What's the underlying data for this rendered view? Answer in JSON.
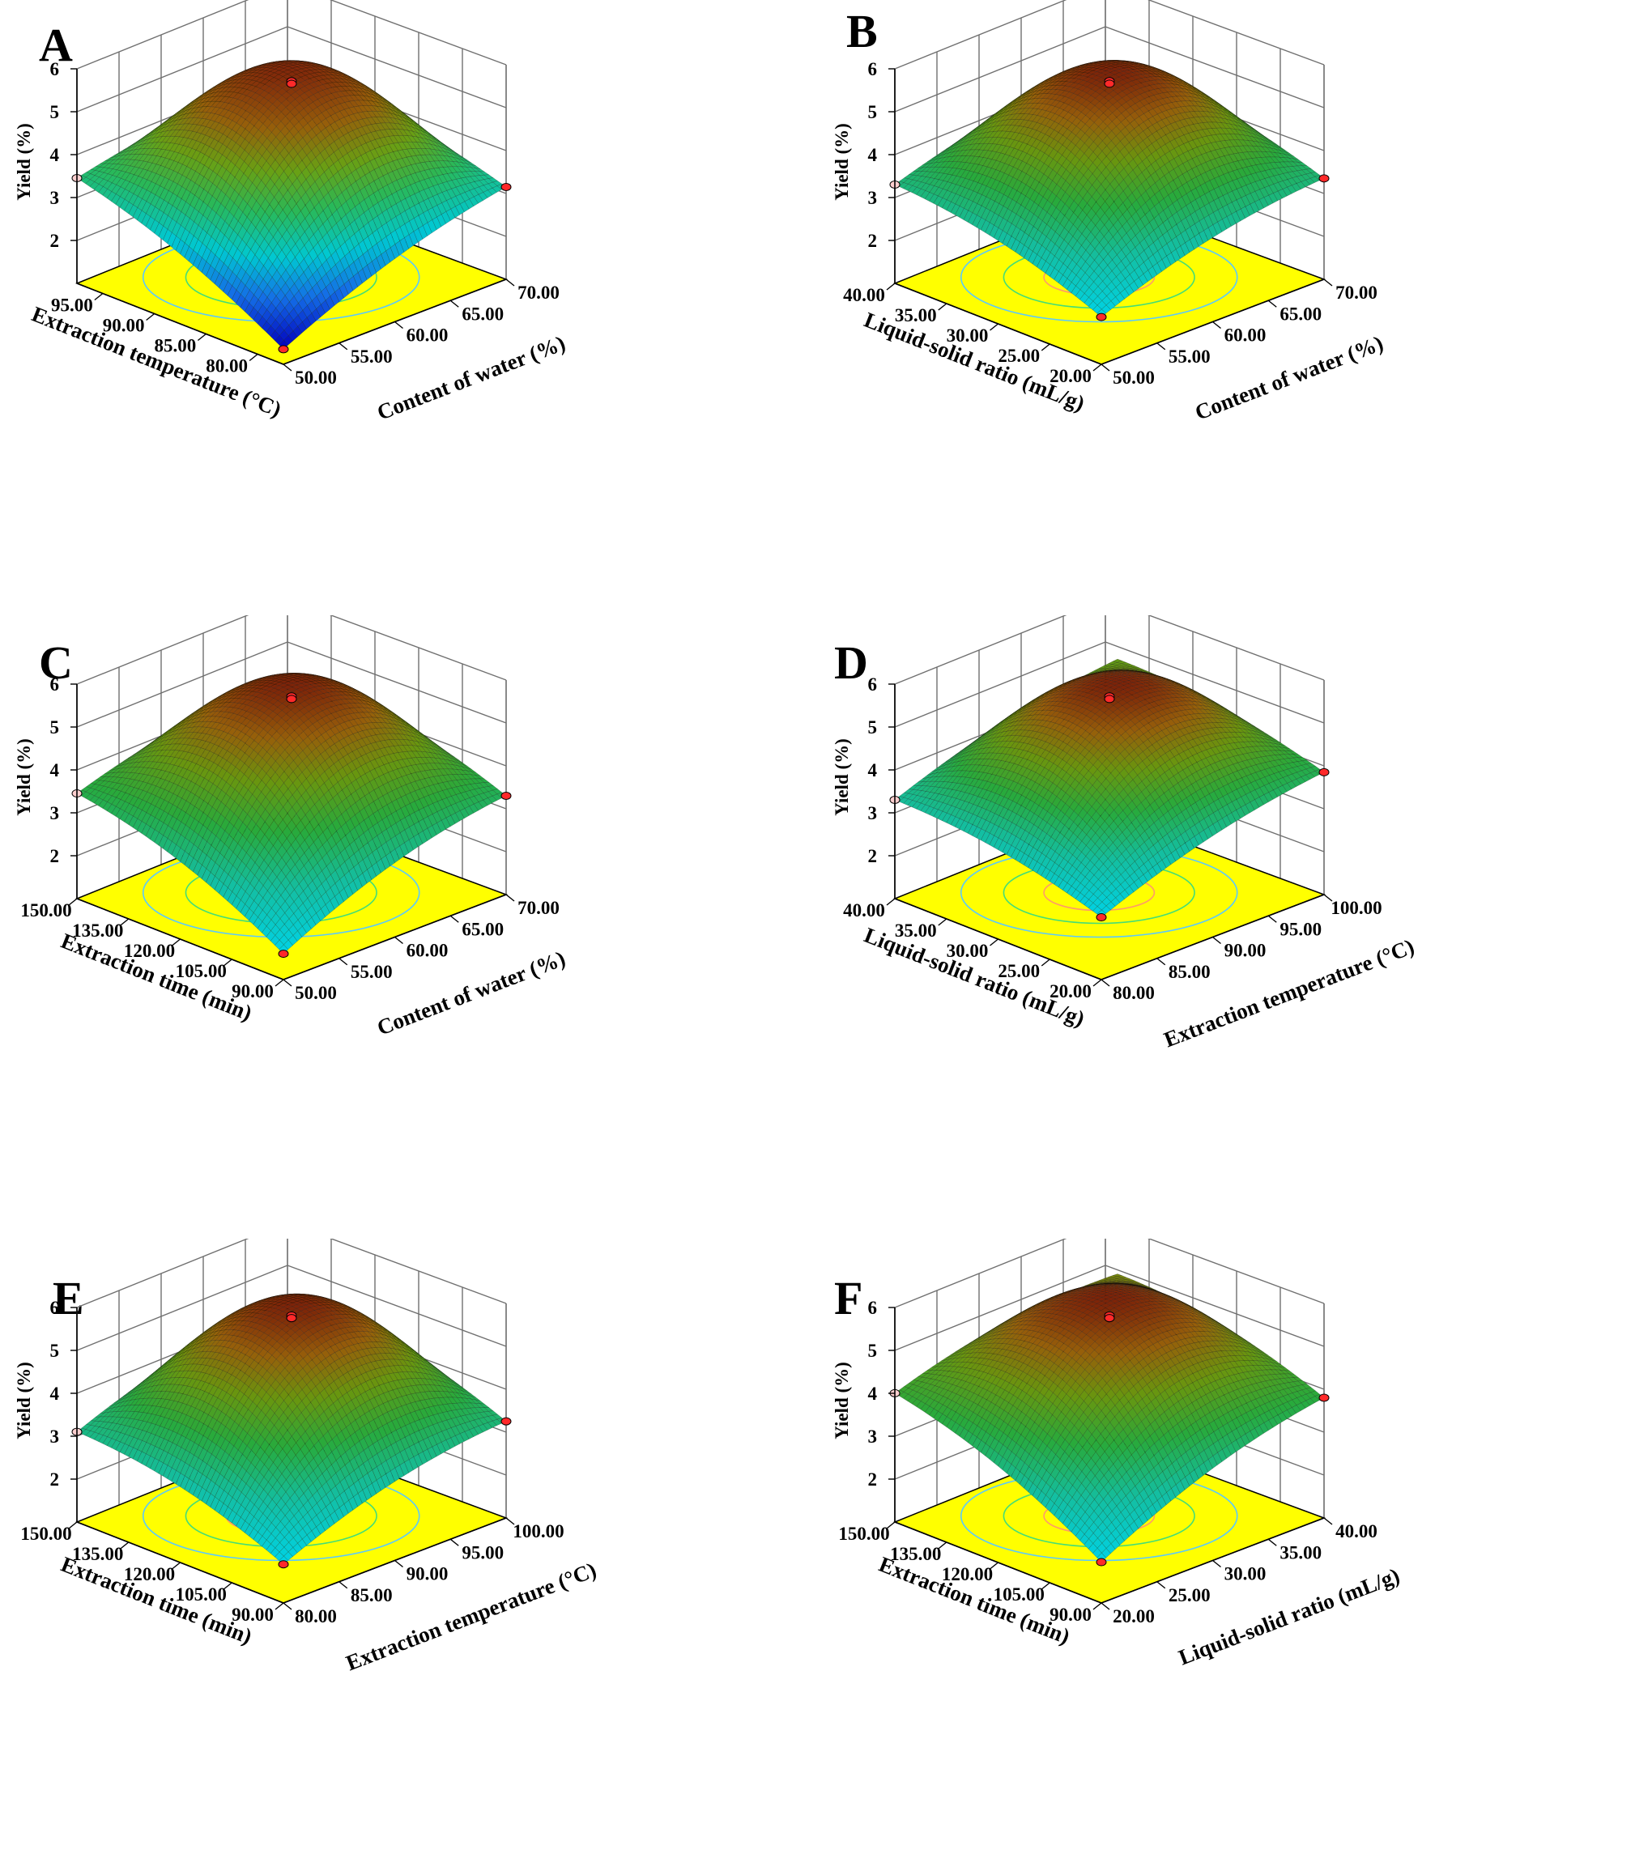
{
  "figure": {
    "title": ""
  },
  "chart_data": [
    {
      "panel": "A",
      "type": "surface",
      "title": "",
      "zlabel": "Yield (%)",
      "xlabel": "Extraction temperature (°C)",
      "ylabel": "Content of water (%)",
      "z_ticks": [
        "2",
        "3",
        "4",
        "5",
        "6"
      ],
      "x_ticks": [
        "80.00",
        "85.00",
        "90.00",
        "95.00"
      ],
      "y_ticks": [
        "50.00",
        "55.00",
        "60.00",
        "65.00",
        "70.00"
      ],
      "xlim": [
        77.5,
        97.5
      ],
      "ylim": [
        50,
        70
      ],
      "zlim": [
        1,
        6
      ],
      "corner_values": {
        "x_min_y_min": 1.35,
        "x_max_y_min": 3.45,
        "x_min_y_max": 3.15,
        "x_max_y_max": 3.9
      },
      "peak": {
        "x": 88.5,
        "y": 60,
        "z": 5.5
      },
      "z_center_mid": 3.8,
      "style": "blue"
    },
    {
      "panel": "B",
      "type": "surface",
      "title": "",
      "zlabel": "Yield (%)",
      "xlabel": "Liquid-solid ratio (mL/g)",
      "ylabel": "Content of water (%)",
      "z_ticks": [
        "2",
        "3",
        "4",
        "5",
        "6"
      ],
      "x_ticks": [
        "20.00",
        "25.00",
        "30.00",
        "35.00",
        "40.00"
      ],
      "y_ticks": [
        "50.00",
        "55.00",
        "60.00",
        "65.00",
        "70.00"
      ],
      "xlim": [
        20,
        40
      ],
      "ylim": [
        50,
        70
      ],
      "zlim": [
        1,
        6
      ],
      "corner_values": {
        "x_min_y_min": 2.1,
        "x_max_y_min": 3.3,
        "x_min_y_max": 3.35,
        "x_max_y_max": 4.2
      },
      "peak": {
        "x": 30,
        "y": 60,
        "z": 5.5
      },
      "z_center_mid": 4.4,
      "style": "cyan"
    },
    {
      "panel": "C",
      "type": "surface",
      "title": "",
      "zlabel": "Yield (%)",
      "xlabel": "Extraction time (min)",
      "ylabel": "Content of water (%)",
      "z_ticks": [
        "2",
        "3",
        "4",
        "5",
        "6"
      ],
      "x_ticks": [
        "90.00",
        "105.00",
        "120.00",
        "135.00",
        "150.00"
      ],
      "y_ticks": [
        "50.00",
        "55.00",
        "60.00",
        "65.00",
        "70.00"
      ],
      "xlim": [
        90,
        150
      ],
      "ylim": [
        50,
        70
      ],
      "zlim": [
        1,
        6
      ],
      "corner_values": {
        "x_min_y_min": 1.6,
        "x_max_y_min": 3.45,
        "x_min_y_max": 3.3,
        "x_max_y_max": 4.2
      },
      "peak": {
        "x": 120,
        "y": 60,
        "z": 5.5
      },
      "z_center_mid": 4.4,
      "style": "cyan"
    },
    {
      "panel": "D",
      "type": "surface",
      "title": "",
      "zlabel": "Yield (%)",
      "xlabel": "Liquid-solid ratio (mL/g)",
      "ylabel": "Extraction temperature (°C)",
      "z_ticks": [
        "2",
        "3",
        "4",
        "5",
        "6"
      ],
      "x_ticks": [
        "20.00",
        "25.00",
        "30.00",
        "35.00",
        "40.00"
      ],
      "y_ticks": [
        "80.00",
        "85.00",
        "90.00",
        "95.00",
        "100.00"
      ],
      "xlim": [
        20,
        40
      ],
      "ylim": [
        80,
        100
      ],
      "zlim": [
        1,
        6
      ],
      "corner_values": {
        "x_min_y_min": 2.45,
        "x_max_y_min": 3.3,
        "x_min_y_max": 3.85,
        "x_max_y_max": 4.6
      },
      "peak": {
        "x": 30,
        "y": 90,
        "z": 5.5
      },
      "z_center_mid": 4.6,
      "style": "cyan"
    },
    {
      "panel": "E",
      "type": "surface",
      "title": "",
      "zlabel": "Yield (%)",
      "xlabel": "Extraction time (min)",
      "ylabel": "Extraction temperature (°C)",
      "z_ticks": [
        "2",
        "3",
        "4",
        "5",
        "6"
      ],
      "x_ticks": [
        "90.00",
        "105.00",
        "120.00",
        "135.00",
        "150.00"
      ],
      "y_ticks": [
        "80.00",
        "85.00",
        "90.00",
        "95.00",
        "100.00"
      ],
      "xlim": [
        90,
        150
      ],
      "ylim": [
        80,
        100
      ],
      "zlim": [
        1,
        6
      ],
      "corner_values": {
        "x_min_y_min": 1.9,
        "x_max_y_min": 3.1,
        "x_min_y_max": 3.25,
        "x_max_y_max": 4.3
      },
      "peak": {
        "x": 120,
        "y": 90,
        "z": 5.6
      },
      "z_center_mid": 4.5,
      "style": "cyan"
    },
    {
      "panel": "F",
      "type": "surface",
      "title": "",
      "zlabel": "Yield (%)",
      "xlabel": "Extraction time (min)",
      "ylabel": "Liquid-solid ratio (mL/g)",
      "z_ticks": [
        "2",
        "3",
        "4",
        "5",
        "6"
      ],
      "x_ticks": [
        "90.00",
        "105.00",
        "120.00",
        "135.00",
        "150.00"
      ],
      "y_ticks": [
        "20.00",
        "25.00",
        "30.00",
        "35.00",
        "40.00"
      ],
      "xlim": [
        90,
        150
      ],
      "ylim": [
        20,
        40
      ],
      "zlim": [
        1,
        6
      ],
      "corner_values": {
        "x_min_y_min": 1.95,
        "x_max_y_min": 4.0,
        "x_min_y_max": 3.8,
        "x_max_y_max": 4.8
      },
      "peak": {
        "x": 120,
        "y": 30,
        "z": 5.6
      },
      "z_center_mid": 4.8,
      "style": "cyan"
    }
  ]
}
